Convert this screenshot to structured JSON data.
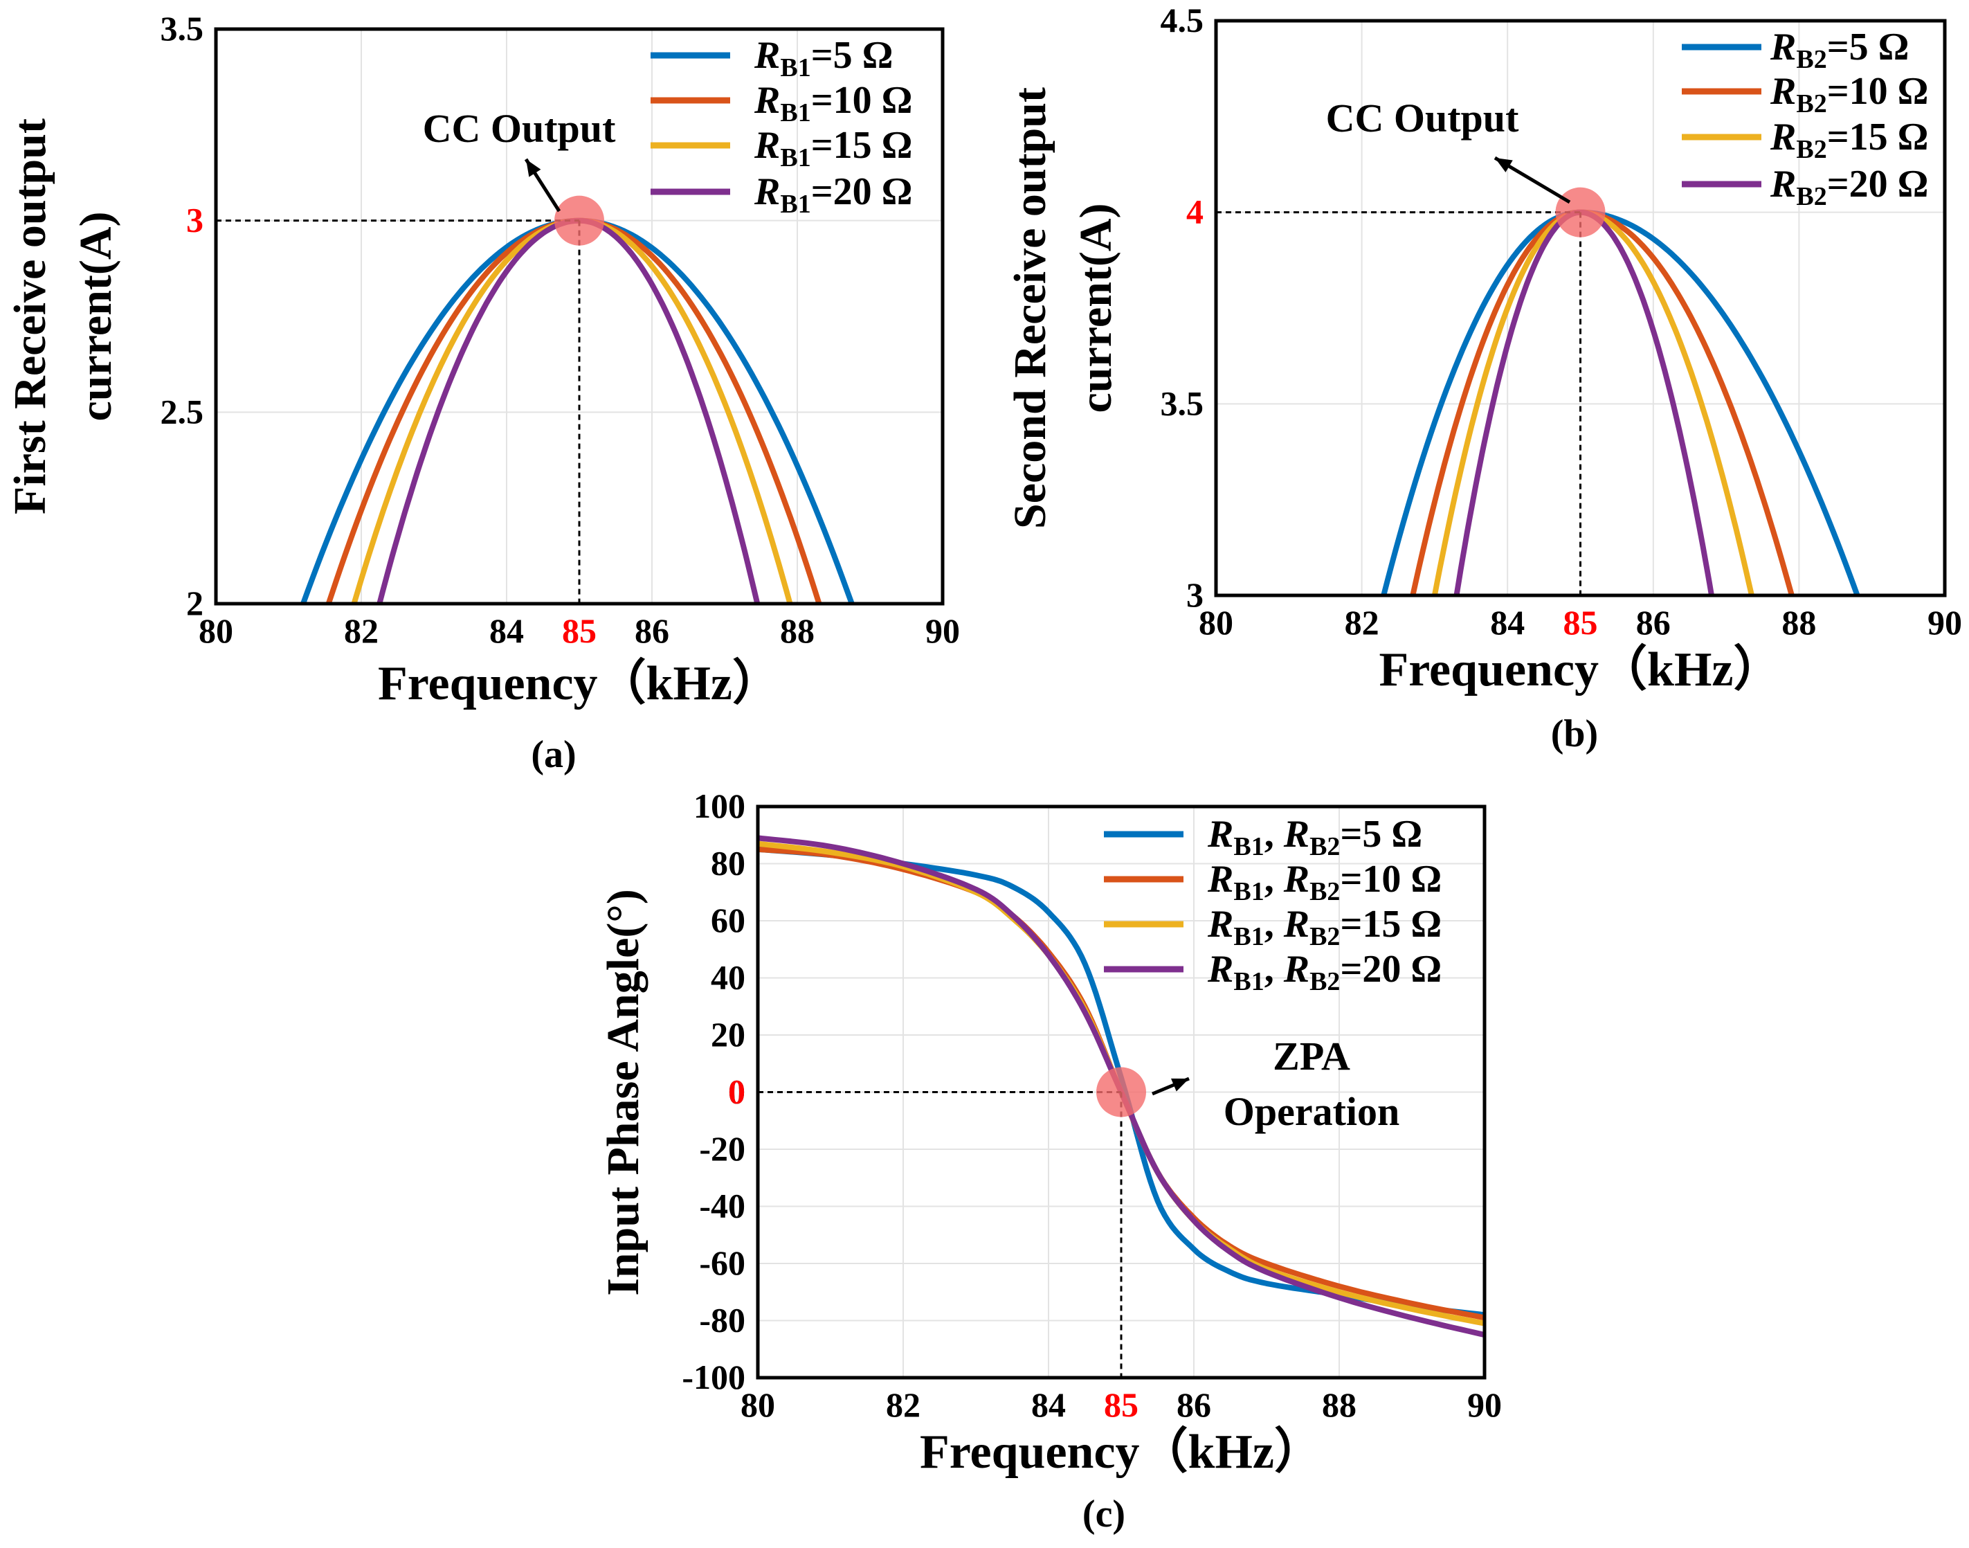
{
  "figure": {
    "palette": {
      "s1": "#0072bd",
      "s2": "#d95319",
      "s3": "#edb120",
      "s4": "#7e2f8e",
      "highlight": "#ff0000",
      "marker": "#f46d6d"
    }
  },
  "chart_data": [
    {
      "type": "line",
      "caption": "(a)",
      "xlabel": "Frequency（kHz）",
      "ylabel_lines": [
        "First Receive output",
        "current(A)"
      ],
      "xlim": [
        80,
        90
      ],
      "ylim": [
        2,
        3.5
      ],
      "xticks": [
        "80",
        "82",
        "84",
        "86",
        "88",
        "90"
      ],
      "yticks": [
        "3.5",
        "2.5",
        "2"
      ],
      "highlight": {
        "x": 85,
        "y": 3,
        "x_label": "85",
        "y_label": "3"
      },
      "annotation": "CC Output",
      "legend_position": "top-right",
      "series": [
        {
          "name": "R",
          "sub": "B1",
          "value": "=5 Ω",
          "color": "#0072bd",
          "x_at_2": [
            81.2,
            88.75
          ]
        },
        {
          "name": "R",
          "sub": "B1",
          "value": "=10 Ω",
          "color": "#d95319",
          "x_at_2": [
            81.55,
            88.3
          ]
        },
        {
          "name": "R",
          "sub": "B1",
          "value": "=15 Ω",
          "color": "#edb120",
          "x_at_2": [
            81.9,
            87.9
          ]
        },
        {
          "name": "R",
          "sub": "B1",
          "value": "=20 Ω",
          "color": "#7e2f8e",
          "x_at_2": [
            82.25,
            87.45
          ]
        }
      ]
    },
    {
      "type": "line",
      "caption": "(b)",
      "xlabel": "Frequency（kHz）",
      "ylabel_lines": [
        "Second Receive output",
        "current(A)"
      ],
      "xlim": [
        80,
        90
      ],
      "ylim": [
        3,
        4.5
      ],
      "xticks": [
        "80",
        "82",
        "84",
        "86",
        "88",
        "90"
      ],
      "yticks": [
        "4.5",
        "3.5",
        "3"
      ],
      "highlight": {
        "x": 85,
        "y": 4,
        "x_label": "85",
        "y_label": "4"
      },
      "annotation": "CC Output",
      "legend_position": "top-right",
      "series": [
        {
          "name": "R",
          "sub": "B2",
          "value": "=5 Ω",
          "color": "#0072bd",
          "x_at_3": [
            82.3,
            88.8
          ]
        },
        {
          "name": "R",
          "sub": "B2",
          "value": "=10 Ω",
          "color": "#d95319",
          "x_at_3": [
            82.7,
            87.9
          ]
        },
        {
          "name": "R",
          "sub": "B2",
          "value": "=15 Ω",
          "color": "#edb120",
          "x_at_3": [
            83.0,
            87.35
          ]
        },
        {
          "name": "R",
          "sub": "B2",
          "value": "=20 Ω",
          "color": "#7e2f8e",
          "x_at_3": [
            83.3,
            86.8
          ]
        }
      ]
    },
    {
      "type": "line",
      "caption": "(c)",
      "xlabel": "Frequency（kHz）",
      "ylabel": "Input Phase Angle(°)",
      "xlim": [
        80,
        90
      ],
      "ylim": [
        -100,
        100
      ],
      "xticks": [
        "80",
        "82",
        "84",
        "86",
        "88",
        "90"
      ],
      "yticks": [
        "100",
        "80",
        "60",
        "40",
        "20",
        "0",
        "-20",
        "-40",
        "-60",
        "-80",
        "-100"
      ],
      "highlight": {
        "x": 85,
        "y": 0,
        "x_label": "85",
        "y_label": "0"
      },
      "annotation_lines": [
        "ZPA",
        "Operation"
      ],
      "legend_position": "top-right",
      "series": [
        {
          "name": "R",
          "sub": "B1",
          "sep": ",  ",
          "name2": "R",
          "sub2": "B2",
          "value": "=5 Ω",
          "color": "#0072bd",
          "points": [
            [
              80,
              85
            ],
            [
              81,
              83
            ],
            [
              82,
              80
            ],
            [
              83,
              76
            ],
            [
              83.5,
              72
            ],
            [
              84,
              63
            ],
            [
              84.5,
              45
            ],
            [
              85,
              5
            ],
            [
              85.5,
              -38
            ],
            [
              86,
              -55
            ],
            [
              86.5,
              -63
            ],
            [
              87,
              -67
            ],
            [
              88,
              -71
            ],
            [
              89,
              -75
            ],
            [
              90,
              -78
            ]
          ]
        },
        {
          "name": "R",
          "sub": "B1",
          "sep": ",  ",
          "name2": "R",
          "sub2": "B2",
          "value": "=10 Ω",
          "color": "#d95319",
          "points": [
            [
              80,
              85
            ],
            [
              81,
              83
            ],
            [
              82,
              78
            ],
            [
              83,
              70
            ],
            [
              83.5,
              62
            ],
            [
              84,
              49
            ],
            [
              84.5,
              30
            ],
            [
              85,
              0
            ],
            [
              85.5,
              -28
            ],
            [
              86,
              -44
            ],
            [
              86.5,
              -54
            ],
            [
              87,
              -60
            ],
            [
              88,
              -68
            ],
            [
              89,
              -74
            ],
            [
              90,
              -79
            ]
          ]
        },
        {
          "name": "R",
          "sub": "B1",
          "sep": ",  ",
          "name2": "R",
          "sub2": "B2",
          "value": "=15 Ω",
          "color": "#edb120",
          "points": [
            [
              80,
              87
            ],
            [
              81,
              84
            ],
            [
              82,
              79
            ],
            [
              83,
              70
            ],
            [
              83.5,
              61
            ],
            [
              84,
              48
            ],
            [
              84.5,
              29
            ],
            [
              85,
              0
            ],
            [
              85.5,
              -28
            ],
            [
              86,
              -45
            ],
            [
              86.5,
              -55
            ],
            [
              87,
              -62
            ],
            [
              88,
              -70
            ],
            [
              89,
              -76
            ],
            [
              90,
              -81
            ]
          ]
        },
        {
          "name": "R",
          "sub": "B1",
          "sep": ",  ",
          "name2": "R",
          "sub2": "B2",
          "value": "=20 Ω",
          "color": "#7e2f8e",
          "points": [
            [
              80,
              89
            ],
            [
              81,
              86
            ],
            [
              82,
              80
            ],
            [
              83,
              71
            ],
            [
              83.5,
              62
            ],
            [
              84,
              48
            ],
            [
              84.5,
              28
            ],
            [
              85,
              0
            ],
            [
              85.5,
              -28
            ],
            [
              86,
              -45
            ],
            [
              86.5,
              -56
            ],
            [
              87,
              -63
            ],
            [
              88,
              -72
            ],
            [
              89,
              -79
            ],
            [
              90,
              -85
            ]
          ]
        }
      ]
    }
  ]
}
